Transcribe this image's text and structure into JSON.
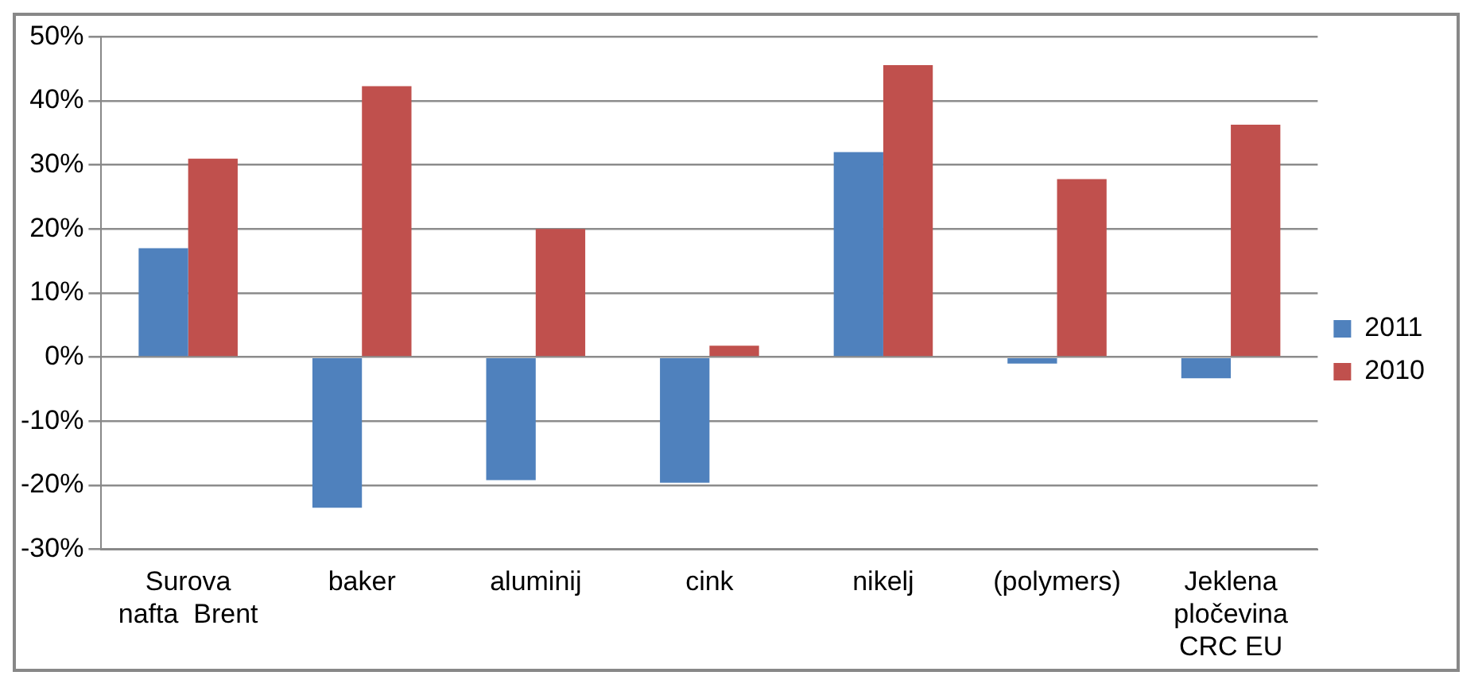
{
  "chart_data": {
    "type": "bar",
    "categories": [
      "Surova\nnafta  Brent",
      "baker",
      "aluminij",
      "cink",
      "nikelj",
      "(polymers)",
      "Jeklena\npločevina\nCRC EU"
    ],
    "series": [
      {
        "name": "2011",
        "color": "#4f81bd",
        "values": [
          17,
          -23.5,
          -19.2,
          -19.6,
          32,
          -1,
          -3.3
        ]
      },
      {
        "name": "2010",
        "color": "#c0504d",
        "values": [
          31,
          42.3,
          20,
          1.8,
          45.6,
          27.8,
          36.3
        ]
      }
    ],
    "ylim": [
      -30,
      50
    ],
    "yticks": [
      {
        "value": -30,
        "label": "-30%"
      },
      {
        "value": -20,
        "label": "-20%"
      },
      {
        "value": -10,
        "label": "-10%"
      },
      {
        "value": 0,
        "label": "0%"
      },
      {
        "value": 10,
        "label": "10%"
      },
      {
        "value": 20,
        "label": "20%"
      },
      {
        "value": 30,
        "label": "30%"
      },
      {
        "value": 40,
        "label": "40%"
      },
      {
        "value": 50,
        "label": "50%"
      }
    ],
    "grid": "y",
    "legend": "right"
  }
}
